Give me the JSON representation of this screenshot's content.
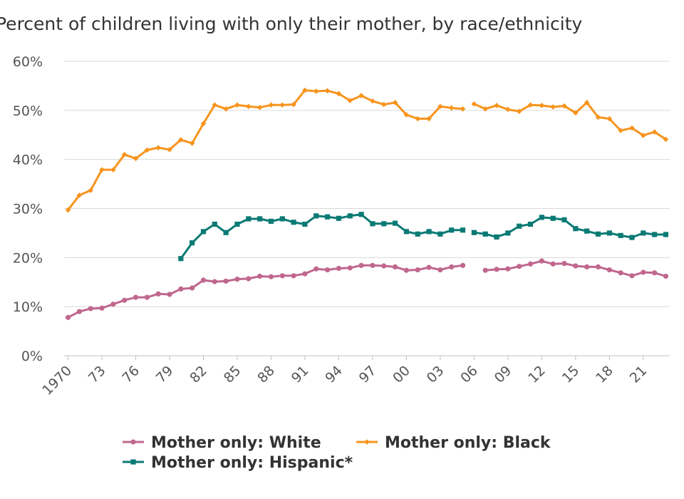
{
  "chart_data": {
    "type": "line",
    "title": "Percent of children living with only their mother, by race/ethnicity",
    "xlabel": "",
    "ylabel": "",
    "ylim": [
      0,
      60
    ],
    "yticks": [
      "0%",
      "10%",
      "20%",
      "30%",
      "40%",
      "50%",
      "60%"
    ],
    "ytick_values": [
      0,
      10,
      20,
      30,
      40,
      50,
      60
    ],
    "xlim": [
      1970,
      2023
    ],
    "xticks": [
      "1970",
      "73",
      "76",
      "79",
      "82",
      "85",
      "88",
      "91",
      "94",
      "97",
      "00",
      "03",
      "06",
      "09",
      "12",
      "15",
      "18",
      "21"
    ],
    "xtick_values": [
      1970,
      1973,
      1976,
      1979,
      1982,
      1985,
      1988,
      1991,
      1994,
      1997,
      2000,
      2003,
      2006,
      2009,
      2012,
      2015,
      2018,
      2021
    ],
    "grid": true,
    "legend_position": "bottom",
    "series": [
      {
        "name": "Mother only: White",
        "color": "#c0678e",
        "marker": "circle",
        "segments": [
          {
            "x": [
              1970,
              1971,
              1972,
              1973,
              1974,
              1975,
              1976,
              1977,
              1978,
              1979,
              1980,
              1981,
              1982,
              1983,
              1984,
              1985,
              1986,
              1987,
              1988,
              1989,
              1990,
              1991,
              1992,
              1993,
              1994,
              1995,
              1996,
              1997,
              1998,
              1999,
              2000,
              2001,
              2002,
              2003,
              2004,
              2005
            ],
            "y": [
              7.8,
              9.0,
              9.6,
              9.7,
              10.5,
              11.3,
              11.9,
              11.9,
              12.6,
              12.5,
              13.6,
              13.8,
              15.4,
              15.1,
              15.2,
              15.6,
              15.7,
              16.2,
              16.1,
              16.3,
              16.3,
              16.7,
              17.7,
              17.5,
              17.8,
              17.9,
              18.4,
              18.4,
              18.3,
              18.1,
              17.4,
              17.5,
              18.0,
              17.5,
              18.1,
              18.4
            ]
          },
          {
            "x": [
              2007,
              2008,
              2009,
              2010,
              2011,
              2012,
              2013,
              2014,
              2015,
              2016,
              2017,
              2018,
              2019,
              2020,
              2021,
              2022,
              2023
            ],
            "y": [
              17.4,
              17.6,
              17.7,
              18.2,
              18.7,
              19.3,
              18.7,
              18.8,
              18.3,
              18.1,
              18.1,
              17.5,
              16.9,
              16.3,
              17.0,
              16.9,
              16.2
            ]
          }
        ]
      },
      {
        "name": "Mother only: Black",
        "color": "#f7941e",
        "marker": "diamond",
        "segments": [
          {
            "x": [
              1970,
              1971,
              1972,
              1973,
              1974,
              1975,
              1976,
              1977,
              1978,
              1979,
              1980,
              1981,
              1982,
              1983,
              1984,
              1985,
              1986,
              1987,
              1988,
              1989,
              1990,
              1991,
              1992,
              1993,
              1994,
              1995,
              1996,
              1997,
              1998,
              1999,
              2000,
              2001,
              2002,
              2003,
              2004,
              2005
            ],
            "y": [
              29.7,
              32.7,
              33.7,
              37.9,
              37.9,
              41.0,
              40.2,
              41.9,
              42.4,
              42.0,
              44.0,
              43.3,
              47.3,
              51.1,
              50.3,
              51.1,
              50.8,
              50.6,
              51.1,
              51.1,
              51.2,
              54.1,
              53.9,
              54.0,
              53.4,
              52.0,
              53.0,
              51.9,
              51.2,
              51.6,
              49.1,
              48.3,
              48.3,
              50.8,
              50.5,
              50.3
            ]
          },
          {
            "x": [
              2006,
              2007,
              2008,
              2009,
              2010,
              2011,
              2012,
              2013,
              2014,
              2015,
              2016,
              2017,
              2018,
              2019,
              2020,
              2021,
              2022,
              2023
            ],
            "y": [
              51.3,
              50.3,
              51.0,
              50.2,
              49.8,
              51.1,
              51.0,
              50.7,
              50.9,
              49.5,
              51.6,
              48.6,
              48.3,
              45.9,
              46.4,
              44.9,
              45.6,
              44.1
            ]
          }
        ]
      },
      {
        "name": "Mother only: Hispanic*",
        "color": "#0b7a75",
        "marker": "square",
        "segments": [
          {
            "x": [
              1980,
              1981,
              1982,
              1983,
              1984,
              1985,
              1986,
              1987,
              1988,
              1989,
              1990,
              1991,
              1992,
              1993,
              1994,
              1995,
              1996,
              1997,
              1998,
              1999,
              2000,
              2001,
              2002,
              2003,
              2004,
              2005
            ],
            "y": [
              19.8,
              23.0,
              25.3,
              26.8,
              25.1,
              26.8,
              27.9,
              27.9,
              27.4,
              27.9,
              27.2,
              26.8,
              28.5,
              28.3,
              28.0,
              28.5,
              28.8,
              26.9,
              26.9,
              27.0,
              25.3,
              24.8,
              25.3,
              24.8,
              25.6,
              25.6
            ]
          },
          {
            "x": [
              2006,
              2007,
              2008,
              2009,
              2010,
              2011,
              2012,
              2013,
              2014,
              2015,
              2016,
              2017,
              2018,
              2019,
              2020,
              2021,
              2022,
              2023
            ],
            "y": [
              25.1,
              24.8,
              24.2,
              25.0,
              26.4,
              26.8,
              28.2,
              28.0,
              27.7,
              25.9,
              25.4,
              24.8,
              25.0,
              24.5,
              24.1,
              25.0,
              24.7,
              24.7
            ]
          }
        ]
      }
    ],
    "legend_entries": [
      "Mother only: White",
      "Mother only: Black",
      "Mother only: Hispanic*"
    ]
  }
}
